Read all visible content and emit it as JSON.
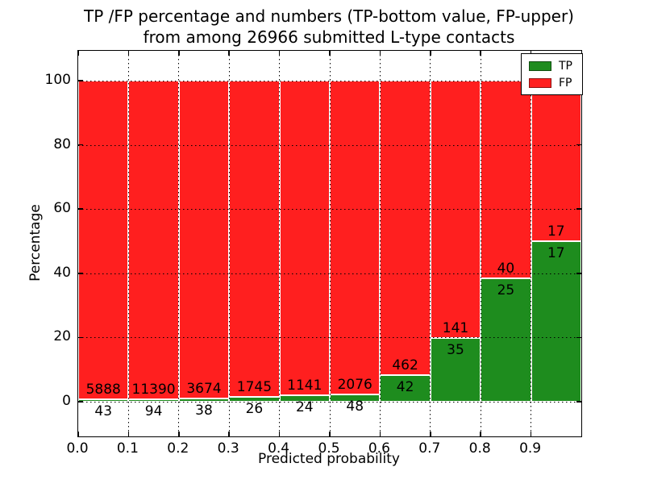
{
  "figure": {
    "title_line1": "TP /FP percentage and numbers (TP-bottom value, FP-upper)",
    "title_line2": "from among 26966 submitted L-type contacts"
  },
  "chart_data": {
    "type": "bar",
    "stacked": true,
    "orientation": "vertical",
    "title": "TP /FP percentage and numbers (TP-bottom value, FP-upper)\nfrom among 26966 submitted L-type contacts",
    "xlabel": "Predicted probability",
    "ylabel": "Percentage",
    "total_contacts": 26966,
    "bin_width": 0.1,
    "x_bins": [
      0.0,
      0.1,
      0.2,
      0.3,
      0.4,
      0.5,
      0.6,
      0.7,
      0.8,
      0.9
    ],
    "x_tick_labels": [
      "0.0",
      "0.1",
      "0.2",
      "0.3",
      "0.4",
      "0.5",
      "0.6",
      "0.7",
      "0.8",
      "0.9"
    ],
    "y_ticks": [
      0,
      20,
      40,
      60,
      80,
      100
    ],
    "xlim": [
      0.0,
      1.0
    ],
    "ylim": [
      -10.8,
      109.3
    ],
    "grid": {
      "style": "dotted",
      "color": "#000000"
    },
    "series": [
      {
        "name": "TP",
        "color": "#1e8c1e",
        "counts": [
          43,
          94,
          38,
          26,
          24,
          48,
          42,
          35,
          25,
          17
        ],
        "percentages": [
          0.73,
          0.82,
          1.02,
          1.47,
          2.06,
          2.26,
          8.33,
          19.89,
          38.46,
          50.0
        ]
      },
      {
        "name": "FP",
        "color": "#ff1f1f",
        "counts": [
          5888,
          11390,
          3674,
          1745,
          1141,
          2076,
          462,
          141,
          40,
          17
        ],
        "percentages": [
          99.27,
          99.18,
          98.98,
          98.53,
          97.94,
          97.74,
          91.67,
          80.11,
          61.54,
          50.0
        ]
      }
    ],
    "annotation_rule": "TP-bottom value, FP-upper",
    "legend": {
      "position": "upper right",
      "entries": [
        {
          "label": "TP",
          "color": "#1e8c1e"
        },
        {
          "label": "FP",
          "color": "#ff1f1f"
        }
      ]
    }
  }
}
